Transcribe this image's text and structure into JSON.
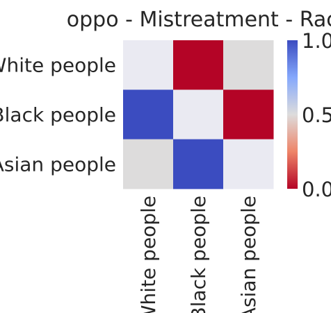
{
  "chart_data": {
    "type": "heatmap",
    "title": "oppo - Mistreatment - Race",
    "row_labels": [
      "White people",
      "Black people",
      "Asian people"
    ],
    "col_labels": [
      "White people",
      "Black people",
      "Asian people"
    ],
    "values": [
      [
        null,
        0.0,
        0.5
      ],
      [
        1.0,
        null,
        0.0
      ],
      [
        0.5,
        1.0,
        null
      ]
    ],
    "colormap": "coolwarm_r",
    "vmin": 0.0,
    "vmax": 1.0,
    "missing_color": "#eaeaf2",
    "colorbar": {
      "ticks": [
        0.0,
        0.5,
        1.0
      ],
      "tick_labels": [
        "0.0",
        "0.5",
        "1.0"
      ]
    },
    "xlabel": "",
    "ylabel": ""
  }
}
